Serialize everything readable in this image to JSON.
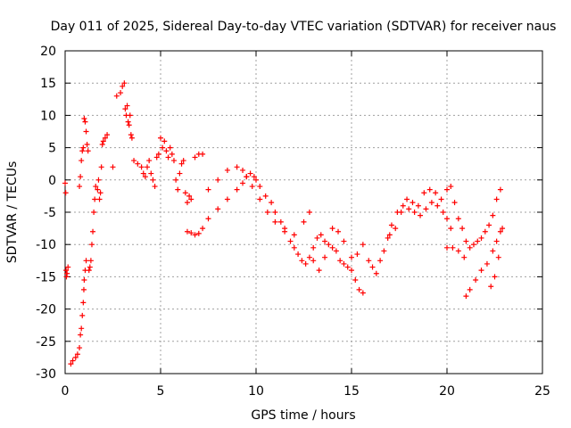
{
  "chart_data": {
    "type": "scatter",
    "title": "Day 011 of 2025, Sidereal Day-to-day VTEC variation (SDTVAR) for receiver naus",
    "xlabel": "GPS time / hours",
    "ylabel": "SDTVAR / TECUs",
    "xlim": [
      0,
      25
    ],
    "ylim": [
      -30,
      20
    ],
    "xticks": [
      0,
      5,
      10,
      15,
      20,
      25
    ],
    "yticks": [
      -30,
      -25,
      -20,
      -15,
      -10,
      -5,
      0,
      5,
      10,
      15,
      20
    ],
    "grid": true,
    "marker": "plus",
    "color": "#ff0000",
    "series": [
      {
        "name": "SDTVAR",
        "points": [
          [
            0.0,
            -0.5
          ],
          [
            0.03,
            -2.0
          ],
          [
            0.05,
            -14.0
          ],
          [
            0.07,
            -15.0
          ],
          [
            0.1,
            -14.5
          ],
          [
            0.15,
            -13.5
          ],
          [
            0.3,
            -28.5
          ],
          [
            0.4,
            -28.0
          ],
          [
            0.55,
            -27.5
          ],
          [
            0.65,
            -27.0
          ],
          [
            0.75,
            -26.0
          ],
          [
            0.8,
            -24.0
          ],
          [
            0.85,
            -23.0
          ],
          [
            0.9,
            -21.0
          ],
          [
            0.95,
            -19.0
          ],
          [
            0.98,
            -17.0
          ],
          [
            1.0,
            -15.5
          ],
          [
            1.05,
            -14.0
          ],
          [
            1.1,
            -12.5
          ],
          [
            0.75,
            -1.0
          ],
          [
            0.8,
            0.5
          ],
          [
            0.85,
            3.0
          ],
          [
            0.9,
            4.5
          ],
          [
            0.95,
            5.0
          ],
          [
            1.0,
            9.5
          ],
          [
            1.05,
            9.0
          ],
          [
            1.1,
            7.5
          ],
          [
            1.15,
            5.5
          ],
          [
            1.2,
            4.5
          ],
          [
            1.25,
            -14.0
          ],
          [
            1.3,
            -13.5
          ],
          [
            1.35,
            -12.5
          ],
          [
            1.4,
            -10.0
          ],
          [
            1.45,
            -8.0
          ],
          [
            1.5,
            -5.0
          ],
          [
            1.55,
            -3.0
          ],
          [
            1.6,
            -1.0
          ],
          [
            1.7,
            -1.5
          ],
          [
            1.75,
            0.0
          ],
          [
            1.8,
            -3.0
          ],
          [
            1.85,
            -2.0
          ],
          [
            1.9,
            2.0
          ],
          [
            1.95,
            5.5
          ],
          [
            2.0,
            6.0
          ],
          [
            2.1,
            6.5
          ],
          [
            2.2,
            7.0
          ],
          [
            2.5,
            2.0
          ],
          [
            2.7,
            13.0
          ],
          [
            2.9,
            13.5
          ],
          [
            3.0,
            14.5
          ],
          [
            3.1,
            15.0
          ],
          [
            3.15,
            11.0
          ],
          [
            3.2,
            10.0
          ],
          [
            3.25,
            11.5
          ],
          [
            3.3,
            9.0
          ],
          [
            3.35,
            8.5
          ],
          [
            3.4,
            10.0
          ],
          [
            3.45,
            7.0
          ],
          [
            3.5,
            6.5
          ],
          [
            3.6,
            3.0
          ],
          [
            3.8,
            2.5
          ],
          [
            4.0,
            2.0
          ],
          [
            4.1,
            1.0
          ],
          [
            4.2,
            0.5
          ],
          [
            4.3,
            2.0
          ],
          [
            4.4,
            3.0
          ],
          [
            4.5,
            1.0
          ],
          [
            4.6,
            0.0
          ],
          [
            4.7,
            -1.0
          ],
          [
            4.8,
            3.5
          ],
          [
            4.9,
            4.0
          ],
          [
            5.0,
            6.5
          ],
          [
            5.1,
            5.0
          ],
          [
            5.2,
            6.0
          ],
          [
            5.3,
            4.5
          ],
          [
            5.4,
            3.5
          ],
          [
            5.5,
            5.0
          ],
          [
            5.6,
            4.0
          ],
          [
            5.7,
            3.0
          ],
          [
            5.8,
            0.0
          ],
          [
            5.9,
            -1.5
          ],
          [
            6.0,
            1.0
          ],
          [
            6.1,
            2.5
          ],
          [
            6.2,
            3.0
          ],
          [
            6.3,
            -2.0
          ],
          [
            6.4,
            -3.5
          ],
          [
            6.5,
            -2.5
          ],
          [
            6.6,
            -3.0
          ],
          [
            6.8,
            3.5
          ],
          [
            7.0,
            4.0
          ],
          [
            7.2,
            4.0
          ],
          [
            6.4,
            -8.0
          ],
          [
            6.6,
            -8.2
          ],
          [
            6.8,
            -8.5
          ],
          [
            7.0,
            -8.3
          ],
          [
            7.2,
            -7.5
          ],
          [
            7.5,
            -6.0
          ],
          [
            8.0,
            -4.5
          ],
          [
            8.5,
            -3.0
          ],
          [
            9.0,
            -1.5
          ],
          [
            9.3,
            -0.5
          ],
          [
            9.5,
            0.5
          ],
          [
            9.7,
            1.0
          ],
          [
            9.9,
            0.5
          ],
          [
            10.0,
            0.0
          ],
          [
            10.2,
            -1.0
          ],
          [
            10.5,
            -2.5
          ],
          [
            10.8,
            -3.5
          ],
          [
            11.0,
            -5.0
          ],
          [
            11.3,
            -6.5
          ],
          [
            11.5,
            -8.0
          ],
          [
            11.8,
            -9.5
          ],
          [
            12.0,
            -10.5
          ],
          [
            12.2,
            -11.5
          ],
          [
            12.4,
            -12.5
          ],
          [
            12.6,
            -13.0
          ],
          [
            12.8,
            -12.0
          ],
          [
            13.0,
            -10.5
          ],
          [
            13.2,
            -9.0
          ],
          [
            13.4,
            -8.5
          ],
          [
            13.6,
            -9.5
          ],
          [
            13.8,
            -10.0
          ],
          [
            14.0,
            -10.5
          ],
          [
            14.2,
            -11.0
          ],
          [
            14.4,
            -12.5
          ],
          [
            14.6,
            -13.0
          ],
          [
            14.8,
            -13.5
          ],
          [
            15.0,
            -14.0
          ],
          [
            15.2,
            -15.5
          ],
          [
            15.4,
            -17.0
          ],
          [
            15.6,
            -17.5
          ],
          [
            7.5,
            -1.5
          ],
          [
            8.0,
            0.0
          ],
          [
            8.5,
            1.5
          ],
          [
            9.0,
            2.0
          ],
          [
            9.3,
            1.5
          ],
          [
            9.5,
            0.5
          ],
          [
            9.8,
            -1.0
          ],
          [
            10.2,
            -3.0
          ],
          [
            10.6,
            -5.0
          ],
          [
            11.0,
            -6.5
          ],
          [
            11.5,
            -7.5
          ],
          [
            12.0,
            -8.5
          ],
          [
            12.5,
            -6.5
          ],
          [
            12.8,
            -5.0
          ],
          [
            13.0,
            -12.5
          ],
          [
            13.3,
            -14.0
          ],
          [
            13.6,
            -12.0
          ],
          [
            14.0,
            -7.5
          ],
          [
            14.3,
            -8.0
          ],
          [
            14.6,
            -9.5
          ],
          [
            15.0,
            -12.0
          ],
          [
            15.3,
            -11.5
          ],
          [
            15.6,
            -10.0
          ],
          [
            15.9,
            -12.5
          ],
          [
            16.1,
            -13.5
          ],
          [
            16.3,
            -14.5
          ],
          [
            16.5,
            -12.5
          ],
          [
            16.7,
            -11.0
          ],
          [
            16.9,
            -9.0
          ],
          [
            17.1,
            -7.0
          ],
          [
            17.4,
            -5.0
          ],
          [
            17.7,
            -4.0
          ],
          [
            18.0,
            -4.5
          ],
          [
            18.3,
            -5.0
          ],
          [
            18.6,
            -5.5
          ],
          [
            18.9,
            -4.5
          ],
          [
            19.2,
            -3.5
          ],
          [
            19.5,
            -4.0
          ],
          [
            19.8,
            -5.0
          ],
          [
            20.0,
            -6.0
          ],
          [
            20.2,
            -7.5
          ],
          [
            17.0,
            -8.5
          ],
          [
            17.3,
            -7.5
          ],
          [
            17.6,
            -5.0
          ],
          [
            17.9,
            -3.0
          ],
          [
            18.2,
            -3.5
          ],
          [
            18.5,
            -4.0
          ],
          [
            18.8,
            -2.0
          ],
          [
            19.1,
            -1.5
          ],
          [
            19.4,
            -2.0
          ],
          [
            19.7,
            -3.0
          ],
          [
            20.0,
            -1.5
          ],
          [
            20.2,
            -1.0
          ],
          [
            20.4,
            -3.5
          ],
          [
            20.6,
            -6.0
          ],
          [
            20.8,
            -7.5
          ],
          [
            21.0,
            -9.5
          ],
          [
            21.2,
            -10.5
          ],
          [
            21.4,
            -10.0
          ],
          [
            21.6,
            -9.5
          ],
          [
            21.8,
            -9.0
          ],
          [
            22.0,
            -8.0
          ],
          [
            22.2,
            -7.0
          ],
          [
            22.4,
            -5.5
          ],
          [
            22.6,
            -3.0
          ],
          [
            22.8,
            -1.5
          ],
          [
            20.0,
            -10.5
          ],
          [
            20.3,
            -10.5
          ],
          [
            20.6,
            -11.0
          ],
          [
            20.9,
            -12.0
          ],
          [
            21.0,
            -18.0
          ],
          [
            21.2,
            -17.0
          ],
          [
            21.5,
            -15.5
          ],
          [
            21.8,
            -14.0
          ],
          [
            22.1,
            -13.0
          ],
          [
            22.4,
            -11.0
          ],
          [
            22.6,
            -9.5
          ],
          [
            22.8,
            -8.0
          ],
          [
            22.3,
            -16.5
          ],
          [
            22.5,
            -15.0
          ],
          [
            22.7,
            -12.0
          ],
          [
            22.9,
            -7.5
          ]
        ]
      }
    ]
  }
}
